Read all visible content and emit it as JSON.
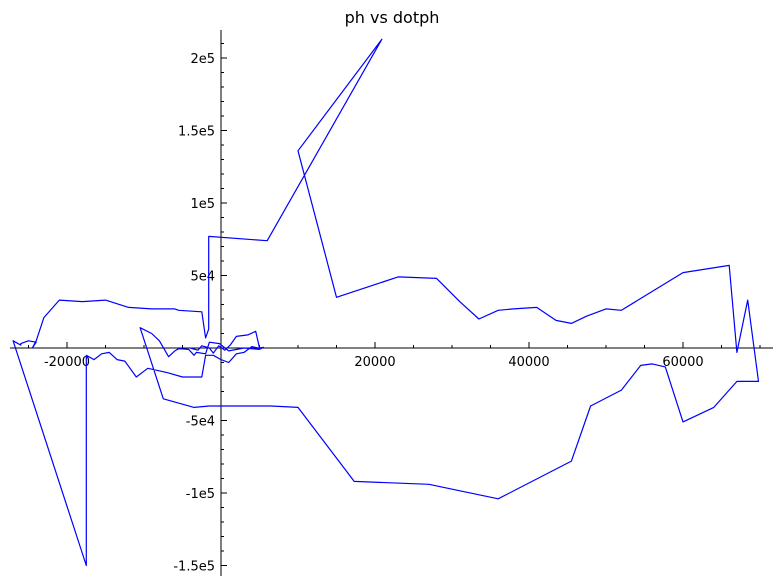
{
  "chart_data": {
    "type": "line",
    "title": "ph vs dotph",
    "xlabel": "",
    "ylabel": "",
    "xlim": [
      -27000,
      70000
    ],
    "ylim": [
      -157000,
      222000
    ],
    "x_ticks": [
      {
        "value": -20000,
        "label": "-20000"
      },
      {
        "value": 20000,
        "label": "20000"
      },
      {
        "value": 40000,
        "label": "40000"
      },
      {
        "value": 60000,
        "label": "60000"
      }
    ],
    "y_ticks": [
      {
        "value": 200000,
        "label": "2e5"
      },
      {
        "value": 150000,
        "label": "1.5e5"
      },
      {
        "value": 100000,
        "label": "1e5"
      },
      {
        "value": 50000,
        "label": "5e4"
      },
      {
        "value": -50000,
        "label": "-5e4"
      },
      {
        "value": -100000,
        "label": "-1e5"
      },
      {
        "value": -150000,
        "label": "-1.5e5"
      }
    ],
    "x_minor_step": 5000,
    "y_minor_step": 10000,
    "grid": false,
    "series": [
      {
        "name": "",
        "color": "#0000ff",
        "points": [
          [
            -4000,
            0
          ],
          [
            -3000,
            -1500
          ],
          [
            -2500,
            1500
          ],
          [
            -1500,
            0
          ],
          [
            -1000,
            -3500
          ],
          [
            -300,
            1500
          ],
          [
            500,
            -1500
          ],
          [
            1200,
            2000
          ],
          [
            2000,
            8000
          ],
          [
            3500,
            9000
          ],
          [
            4500,
            11500
          ],
          [
            5000,
            0
          ],
          [
            5500,
            500
          ],
          [
            5000,
            -1000
          ],
          [
            3000,
            0
          ],
          [
            1000,
            -2000
          ],
          [
            -200,
            3000
          ],
          [
            -1500,
            4000
          ],
          [
            -2000,
            -4000
          ],
          [
            -3200,
            -3000
          ],
          [
            -3500,
            -5000
          ],
          [
            -4200,
            -1000
          ],
          [
            -5500,
            -500
          ],
          [
            -6000,
            -2000
          ],
          [
            -6800,
            -6000
          ],
          [
            -8000,
            5000
          ],
          [
            -9000,
            10000
          ],
          [
            -10500,
            14000
          ],
          [
            -7500,
            -35000
          ],
          [
            -3500,
            -41000
          ],
          [
            -1500,
            -40000
          ],
          [
            6500,
            -40000
          ],
          [
            10000,
            -41000
          ],
          [
            17300,
            -92000
          ],
          [
            27000,
            -94000
          ],
          [
            36000,
            -104000
          ],
          [
            45500,
            -78000
          ],
          [
            48000,
            -40000
          ],
          [
            52000,
            -29000
          ],
          [
            54500,
            -12000
          ],
          [
            56000,
            -11000
          ],
          [
            57700,
            -13000
          ],
          [
            60000,
            -51000
          ],
          [
            64000,
            -41000
          ],
          [
            67000,
            -23000
          ],
          [
            69800,
            -23000
          ],
          [
            68400,
            33000
          ],
          [
            67000,
            -3000
          ],
          [
            66000,
            57000
          ],
          [
            60000,
            52000
          ],
          [
            52000,
            26000
          ],
          [
            50000,
            27000
          ],
          [
            47500,
            22000
          ],
          [
            45500,
            17000
          ],
          [
            43500,
            19000
          ],
          [
            41000,
            28000
          ],
          [
            38000,
            27000
          ],
          [
            36000,
            26000
          ],
          [
            33500,
            20000
          ],
          [
            31000,
            32000
          ],
          [
            28000,
            48000
          ],
          [
            23000,
            49000
          ],
          [
            15000,
            35000
          ],
          [
            10000,
            136000
          ],
          [
            20900,
            213000
          ],
          [
            6000,
            74000
          ],
          [
            -1600,
            77000
          ],
          [
            -1600,
            13000
          ],
          [
            -2000,
            7000
          ],
          [
            -2500,
            25000
          ],
          [
            -5500,
            26000
          ],
          [
            -6000,
            27000
          ],
          [
            -9000,
            27000
          ],
          [
            -12000,
            28000
          ],
          [
            -15000,
            33000
          ],
          [
            -18000,
            32000
          ],
          [
            -21000,
            33000
          ],
          [
            -23000,
            21000
          ],
          [
            -24000,
            5000
          ],
          [
            -24500,
            0
          ],
          [
            -24000,
            4000
          ],
          [
            -25000,
            5000
          ],
          [
            -26000,
            3000
          ],
          [
            -26000,
            2000
          ],
          [
            -27000,
            5000
          ],
          [
            -17500,
            -150000
          ],
          [
            -17500,
            -5000
          ],
          [
            -16500,
            -8000
          ],
          [
            -15500,
            -4000
          ],
          [
            -14500,
            -3000
          ],
          [
            -13500,
            -8000
          ],
          [
            -12500,
            -9000
          ],
          [
            -11000,
            -20000
          ],
          [
            -9500,
            -14000
          ],
          [
            -7000,
            -17000
          ],
          [
            -5000,
            -20000
          ],
          [
            -2500,
            -20000
          ],
          [
            -2000,
            -5000
          ],
          [
            -1000,
            -5000
          ],
          [
            0,
            -8000
          ],
          [
            1000,
            -10000
          ],
          [
            2000,
            -4000
          ],
          [
            3000,
            -3000
          ],
          [
            4000,
            1000
          ],
          [
            4800,
            0
          ],
          [
            5200,
            0
          ]
        ]
      }
    ]
  }
}
